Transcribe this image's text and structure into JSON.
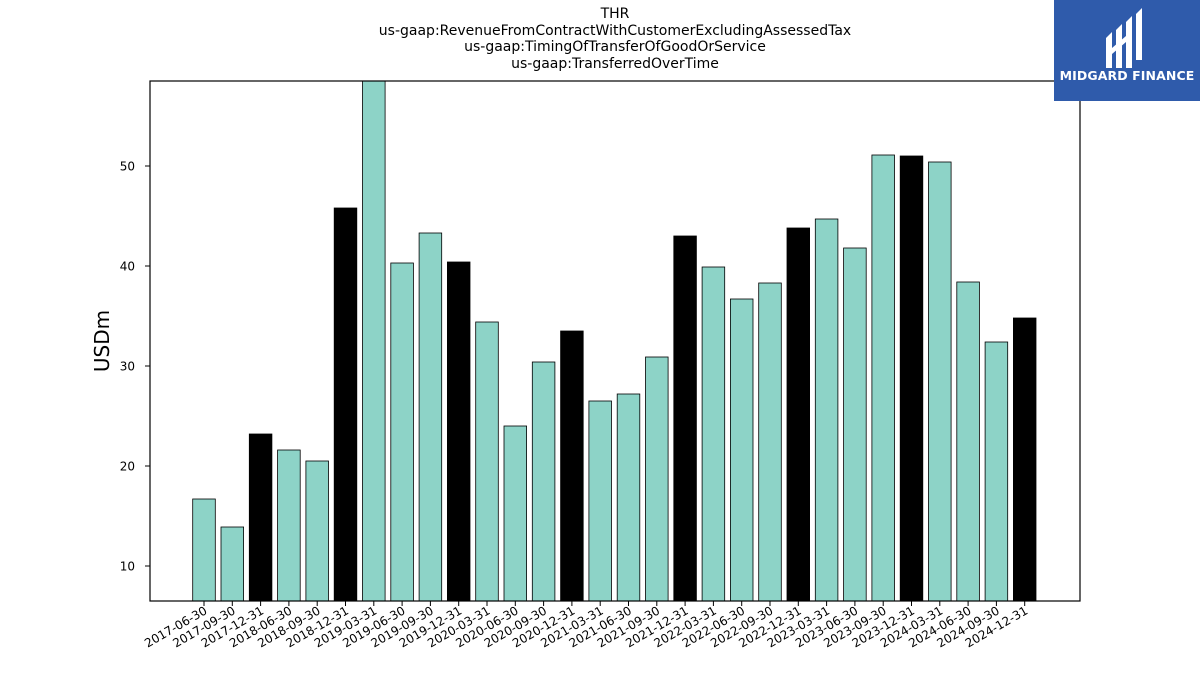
{
  "logo": {
    "text": "MIDGARD FINANCE"
  },
  "chart_data": {
    "type": "bar",
    "title_lines": [
      "THR",
      "us-gaap:RevenueFromContractWithCustomerExcludingAssessedTax",
      "us-gaap:TimingOfTransferOfGoodOrService",
      "us-gaap:TransferredOverTime"
    ],
    "xlabel": "",
    "ylabel": "USDm",
    "ylim": [
      6.5,
      58.5
    ],
    "yticks": [
      10,
      20,
      30,
      40,
      50
    ],
    "grid": false,
    "colors": {
      "quarter": "#8dd3c7",
      "year_end": "#000000",
      "edge": "#000000"
    },
    "categories": [
      "2017-06-30",
      "2017-09-30",
      "2017-12-31",
      "2018-06-30",
      "2018-09-30",
      "2018-12-31",
      "2019-03-31",
      "2019-06-30",
      "2019-09-30",
      "2019-12-31",
      "2020-03-31",
      "2020-06-30",
      "2020-09-30",
      "2020-12-31",
      "2021-03-31",
      "2021-06-30",
      "2021-09-30",
      "2021-12-31",
      "2022-03-31",
      "2022-06-30",
      "2022-09-30",
      "2022-12-31",
      "2023-03-31",
      "2023-06-30",
      "2023-09-30",
      "2023-12-31",
      "2024-03-31",
      "2024-06-30",
      "2024-09-30",
      "2024-12-31"
    ],
    "values": [
      16.7,
      13.9,
      23.2,
      21.6,
      20.5,
      45.8,
      58.5,
      40.3,
      43.3,
      40.4,
      34.4,
      24.0,
      30.4,
      33.5,
      26.5,
      27.2,
      30.9,
      43.0,
      39.9,
      36.7,
      38.3,
      43.8,
      44.7,
      41.8,
      51.1,
      51.0,
      50.4,
      38.4,
      32.4,
      34.8
    ],
    "year_end": [
      false,
      false,
      true,
      false,
      false,
      true,
      false,
      false,
      false,
      true,
      false,
      false,
      false,
      true,
      false,
      false,
      false,
      true,
      false,
      false,
      false,
      true,
      false,
      false,
      false,
      true,
      false,
      false,
      false,
      true
    ]
  }
}
